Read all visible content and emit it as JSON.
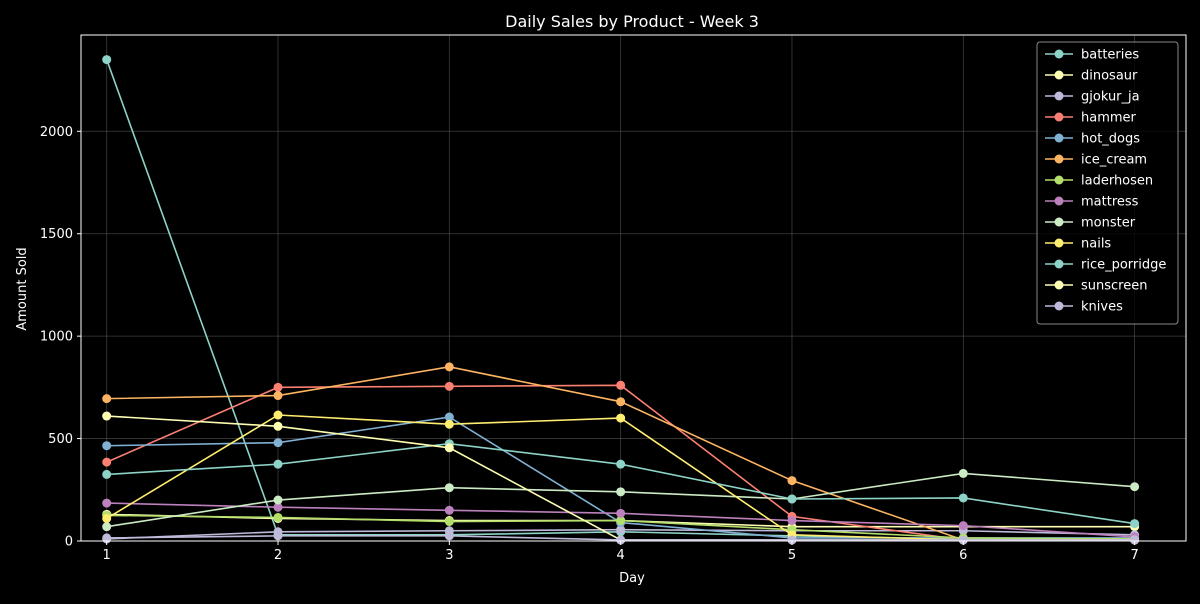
{
  "chart_data": {
    "type": "line",
    "title": "Daily Sales by Product - Week 3",
    "xlabel": "Day",
    "ylabel": "Amount Sold",
    "x": [
      1,
      2,
      3,
      4,
      5,
      6,
      7
    ],
    "x_ticks": [
      "1",
      "2",
      "3",
      "4",
      "5",
      "6",
      "7"
    ],
    "y_ticks": [
      "0",
      "500",
      "1000",
      "1500",
      "2000"
    ],
    "xlim": [
      0.85,
      7.3
    ],
    "ylim": [
      0,
      2470
    ],
    "grid": true,
    "legend_position": "top-right",
    "background": "#000000",
    "series": [
      {
        "name": "batteries",
        "color": "#8dd3c7",
        "values": [
          2350,
          30,
          30,
          45,
          25,
          10,
          10
        ]
      },
      {
        "name": "dinosaur",
        "color": "#ffffb3",
        "values": [
          130,
          110,
          100,
          100,
          70,
          70,
          70
        ]
      },
      {
        "name": "gjokur_ja",
        "color": "#bebada",
        "values": [
          10,
          45,
          50,
          55,
          50,
          50,
          30
        ]
      },
      {
        "name": "hammer",
        "color": "#fb8072",
        "values": [
          385,
          750,
          755,
          760,
          120,
          5,
          5
        ]
      },
      {
        "name": "hot_dogs",
        "color": "#80b1d3",
        "values": [
          465,
          480,
          605,
          90,
          15,
          15,
          15
        ]
      },
      {
        "name": "ice_cream",
        "color": "#fdb462",
        "values": [
          695,
          710,
          850,
          680,
          295,
          5,
          5
        ]
      },
      {
        "name": "laderhosen",
        "color": "#b3de69",
        "values": [
          125,
          115,
          95,
          100,
          55,
          15,
          10
        ]
      },
      {
        "name": "mattress",
        "color": "#bc80bd",
        "values": [
          185,
          165,
          150,
          135,
          100,
          75,
          20
        ]
      },
      {
        "name": "monster",
        "color": "#ccebc5",
        "values": [
          70,
          200,
          260,
          240,
          205,
          330,
          265
        ]
      },
      {
        "name": "nails",
        "color": "#ffed6f",
        "values": [
          110,
          615,
          570,
          600,
          30,
          5,
          5
        ]
      },
      {
        "name": "rice_porridge",
        "color": "#8dd3c7",
        "values": [
          325,
          375,
          475,
          375,
          205,
          210,
          85
        ]
      },
      {
        "name": "sunscreen",
        "color": "#ffffb3",
        "values": [
          610,
          560,
          455,
          5,
          5,
          5,
          5
        ]
      },
      {
        "name": "knives",
        "color": "#bebada",
        "values": [
          15,
          25,
          25,
          5,
          5,
          5,
          5
        ]
      }
    ]
  }
}
